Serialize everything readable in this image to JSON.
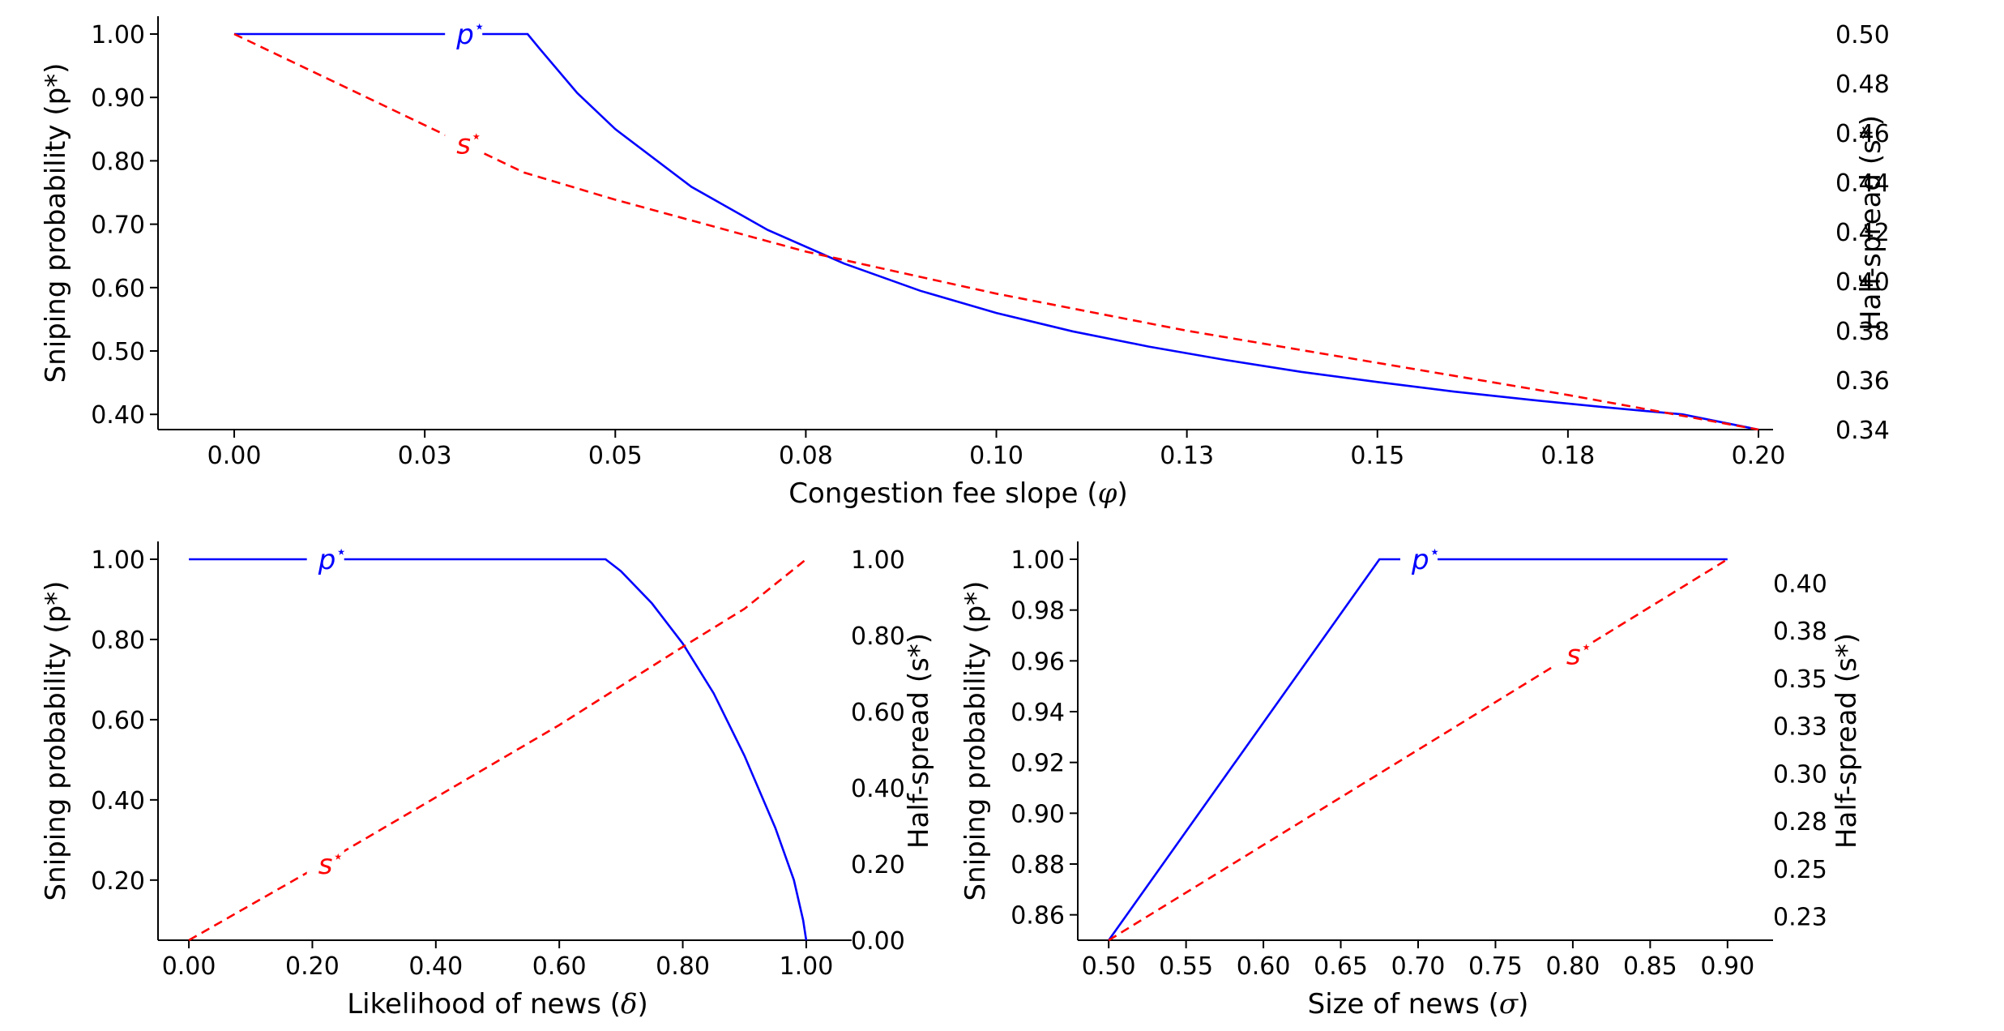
{
  "chart_data": [
    {
      "type": "line",
      "panel": "top",
      "xlabel": "Congestion fee slope",
      "xlabel_symbol": "φ",
      "ylabel_left": "Sniping probability (p*)",
      "ylabel_right": "Half-spread (s*)",
      "xlim": [
        -0.01,
        0.2
      ],
      "ylim_left": [
        0.376,
        1.0
      ],
      "ylim_right": [
        0.34,
        0.5
      ],
      "xticks": [
        0.0,
        0.025,
        0.05,
        0.075,
        0.1,
        0.125,
        0.15,
        0.175,
        0.2
      ],
      "xtick_labels": [
        "0.00",
        "0.03",
        "0.05",
        "0.08",
        "0.10",
        "0.13",
        "0.15",
        "0.18",
        "0.20"
      ],
      "yticks_left": [
        1.0,
        0.9,
        0.8,
        0.7,
        0.6,
        0.5,
        0.4
      ],
      "ytick_labels_left": [
        "1.00",
        "0.90",
        "0.80",
        "0.70",
        "0.60",
        "0.50",
        "0.40"
      ],
      "yticks_right": [
        0.5,
        0.48,
        0.46,
        0.44,
        0.42,
        0.4,
        0.38,
        0.36,
        0.34
      ],
      "ytick_labels_right": [
        "0.50",
        "0.48",
        "0.46",
        "0.44",
        "0.42",
        "0.40",
        "0.38",
        "0.36",
        "0.34"
      ],
      "series": [
        {
          "name": "p*",
          "label": "p",
          "axis": "left",
          "style": "solid",
          "color": "#0000ff",
          "x": [
            0.0,
            0.025,
            0.0385,
            0.04,
            0.045,
            0.05,
            0.06,
            0.07,
            0.08,
            0.09,
            0.1,
            0.11,
            0.12,
            0.13,
            0.14,
            0.15,
            0.16,
            0.17,
            0.18,
            0.19,
            0.2
          ],
          "values": [
            1.0,
            1.0,
            1.0,
            0.978,
            0.907,
            0.85,
            0.759,
            0.691,
            0.638,
            0.595,
            0.56,
            0.531,
            0.507,
            0.486,
            0.467,
            0.451,
            0.436,
            0.423,
            0.411,
            0.4,
            0.376
          ],
          "label_at": [
            0.03,
            1.0
          ]
        },
        {
          "name": "s*",
          "label": "s",
          "axis": "right",
          "style": "dashed",
          "color": "#ff0000",
          "x": [
            0.0,
            0.038,
            0.05,
            0.075,
            0.1,
            0.125,
            0.15,
            0.175,
            0.2
          ],
          "values": [
            0.5,
            0.444,
            0.433,
            0.412,
            0.395,
            0.38,
            0.367,
            0.354,
            0.34
          ],
          "label_at": [
            0.03,
            0.4555
          ]
        }
      ]
    },
    {
      "type": "line",
      "panel": "bottom-left",
      "xlabel": "Likelihood of news",
      "xlabel_symbol": "δ",
      "ylabel_left": "Sniping probability (p*)",
      "ylabel_right": "Half-spread (s*)",
      "xlim": [
        -0.05,
        1.05
      ],
      "ylim_left": [
        0.05,
        1.0
      ],
      "ylim_right": [
        0.0,
        1.0
      ],
      "xticks": [
        0.0,
        0.2,
        0.4,
        0.6,
        0.8,
        1.0
      ],
      "xtick_labels": [
        "0.00",
        "0.20",
        "0.40",
        "0.60",
        "0.80",
        "1.00"
      ],
      "yticks_left": [
        1.0,
        0.8,
        0.6,
        0.4,
        0.2
      ],
      "ytick_labels_left": [
        "1.00",
        "0.80",
        "0.60",
        "0.40",
        "0.20"
      ],
      "yticks_right": [
        1.0,
        0.8,
        0.6,
        0.4,
        0.2,
        0.0
      ],
      "ytick_labels_right": [
        "1.00",
        "0.80",
        "0.60",
        "0.40",
        "0.20",
        "0.00"
      ],
      "series": [
        {
          "name": "p*",
          "label": "p",
          "axis": "left",
          "style": "solid",
          "color": "#0000ff",
          "x": [
            0.0,
            0.675,
            0.7,
            0.75,
            0.8,
            0.85,
            0.9,
            0.95,
            0.98,
            0.995,
            1.0
          ],
          "values": [
            1.0,
            1.0,
            0.97,
            0.89,
            0.79,
            0.666,
            0.51,
            0.33,
            0.2,
            0.1,
            0.05
          ],
          "label_at": [
            0.22,
            1.0
          ]
        },
        {
          "name": "s*",
          "label": "s",
          "axis": "right",
          "style": "dashed",
          "color": "#ff0000",
          "x": [
            0.0,
            0.2,
            0.4,
            0.6,
            0.8,
            0.9,
            1.0
          ],
          "values": [
            0.0,
            0.185,
            0.375,
            0.565,
            0.77,
            0.87,
            1.0
          ],
          "label_at": [
            0.22,
            0.2
          ]
        }
      ]
    },
    {
      "type": "line",
      "panel": "bottom-right",
      "xlabel": "Size of news",
      "xlabel_symbol": "σ",
      "ylabel_left": "Sniping probability (p*)",
      "ylabel_right": "Half-spread (s*)",
      "xlim": [
        0.48,
        0.92
      ],
      "ylim_left": [
        0.85,
        1.0
      ],
      "ylim_right": [
        0.2125,
        0.4125
      ],
      "xticks": [
        0.5,
        0.55,
        0.6,
        0.65,
        0.7,
        0.75,
        0.8,
        0.85,
        0.9
      ],
      "xtick_labels": [
        "0.50",
        "0.55",
        "0.60",
        "0.65",
        "0.70",
        "0.75",
        "0.80",
        "0.85",
        "0.90"
      ],
      "yticks_left": [
        1.0,
        0.98,
        0.96,
        0.94,
        0.92,
        0.9,
        0.88,
        0.86
      ],
      "ytick_labels_left": [
        "1.00",
        "0.98",
        "0.96",
        "0.94",
        "0.92",
        "0.90",
        "0.88",
        "0.86"
      ],
      "yticks_right": [
        0.4,
        0.375,
        0.35,
        0.325,
        0.3,
        0.275,
        0.25,
        0.225
      ],
      "ytick_labels_right": [
        "0.40",
        "0.38",
        "0.35",
        "0.33",
        "0.30",
        "0.28",
        "0.25",
        "0.23"
      ],
      "series": [
        {
          "name": "p*",
          "label": "p",
          "axis": "left",
          "style": "solid",
          "color": "#0000ff",
          "x": [
            0.5,
            0.675,
            0.9
          ],
          "values": [
            0.85,
            1.0,
            1.0
          ],
          "label_at": [
            0.7,
            1.0
          ]
        },
        {
          "name": "s*",
          "label": "s",
          "axis": "right",
          "style": "dashed",
          "color": "#ff0000",
          "x": [
            0.5,
            0.9
          ],
          "values": [
            0.2125,
            0.4125
          ],
          "label_at": [
            0.8,
            0.3625
          ]
        }
      ]
    }
  ]
}
